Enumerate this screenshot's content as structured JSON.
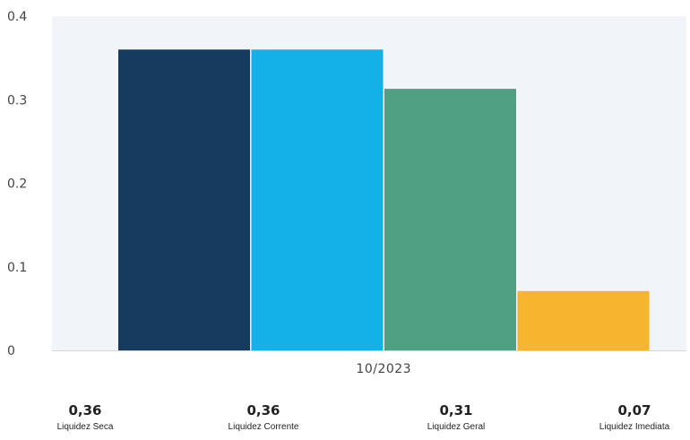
{
  "chart_data": {
    "type": "bar",
    "categories": [
      "10/2023"
    ],
    "series": [
      {
        "name": "Liquidez Seca",
        "values": [
          0.36
        ],
        "color": "#163b5e"
      },
      {
        "name": "Liquidez Corrente",
        "values": [
          0.36
        ],
        "color": "#14b0e8"
      },
      {
        "name": "Liquidez Geral",
        "values": [
          0.313
        ],
        "color": "#50a083"
      },
      {
        "name": "Liquidez Imediata",
        "values": [
          0.071
        ],
        "color": "#f7b52f"
      }
    ],
    "yticks": [
      "0",
      "0.1",
      "0.2",
      "0.3",
      "0.4"
    ],
    "ylim": [
      0,
      0.4
    ],
    "grid": false,
    "plot_background": "#f1f4f9",
    "legend": {
      "placement": "bottom",
      "items": [
        {
          "value": "0,36",
          "name": "Liquidez Seca"
        },
        {
          "value": "0,36",
          "name": "Liquidez Corrente"
        },
        {
          "value": "0,31",
          "name": "Liquidez Geral"
        },
        {
          "value": "0,07",
          "name": "Liquidez Imediata"
        }
      ]
    }
  }
}
